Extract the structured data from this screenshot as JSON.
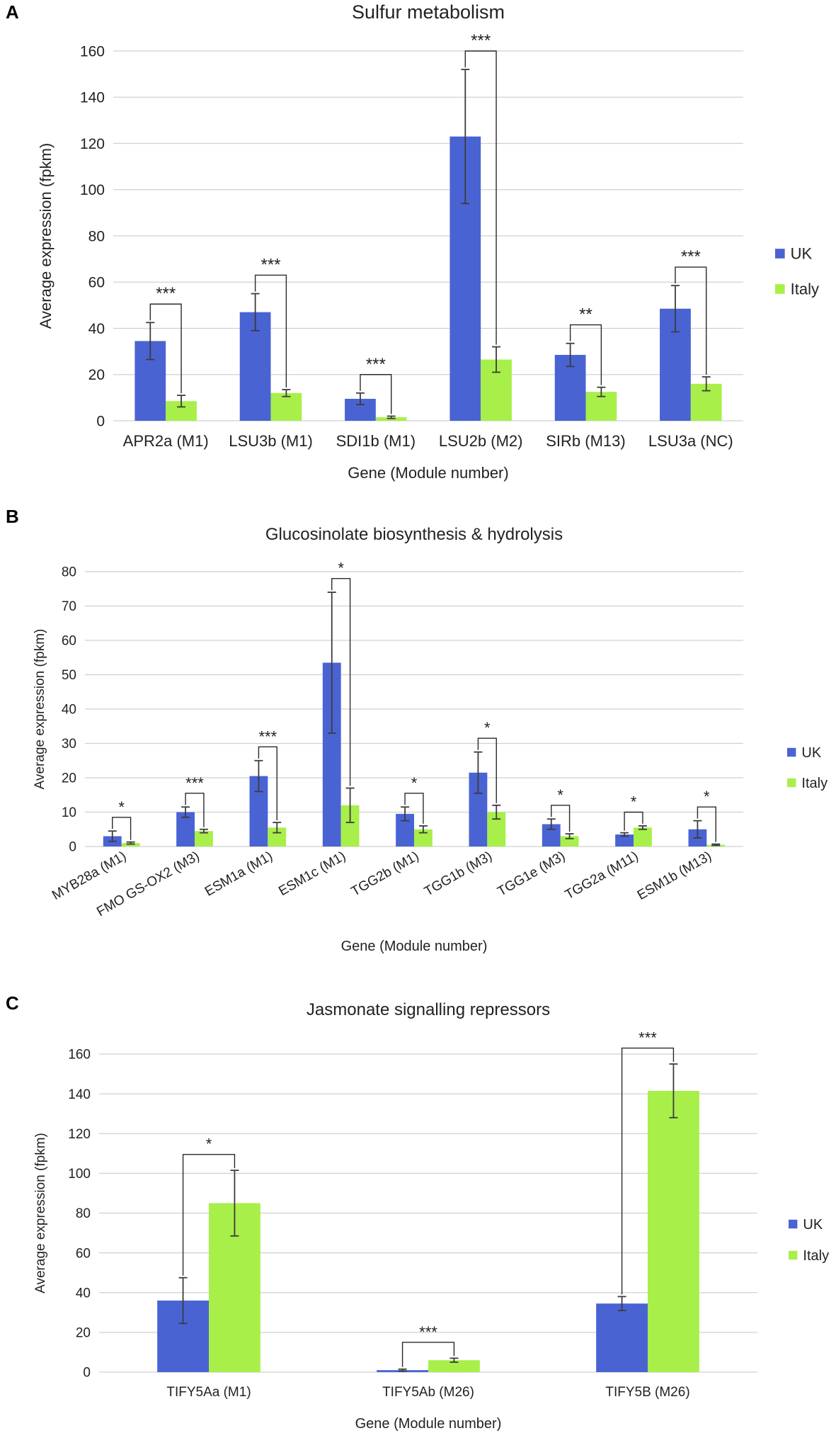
{
  "colors": {
    "uk": "#4a63d3",
    "italy": "#a8ef4a",
    "grid": "#d0d0d0",
    "error": "#3c3c3c",
    "bracket": "#2a2a2a"
  },
  "chart_data": [
    {
      "letter": "A",
      "type": "bar",
      "title": "Sulfur metabolism",
      "ylabel": "Average expression (fpkm)",
      "xlabel": "Gene (Module number)",
      "ylim": [
        0,
        160
      ],
      "yticks": [
        0,
        20,
        40,
        60,
        80,
        100,
        120,
        140,
        160
      ],
      "categories": [
        "APR2a (M1)",
        "LSU3b (M1)",
        "SDI1b (M1)",
        "LSU2b (M2)",
        "SIRb (M13)",
        "LSU3a (NC)"
      ],
      "series": [
        {
          "name": "UK",
          "values": [
            34.5,
            47,
            9.5,
            123,
            28.5,
            48.5
          ],
          "errors": [
            8,
            8,
            2.5,
            29,
            5,
            10
          ]
        },
        {
          "name": "Italy",
          "values": [
            8.5,
            12,
            1.5,
            26.5,
            12.5,
            16
          ],
          "errors": [
            2.5,
            1.5,
            0.5,
            5.5,
            2,
            3
          ]
        }
      ],
      "significance": [
        "***",
        "***",
        "***",
        "***",
        "**",
        "***"
      ],
      "legend": [
        "UK",
        "Italy"
      ],
      "rotate_ticks": false
    },
    {
      "letter": "B",
      "type": "bar",
      "title": "Glucosinolate biosynthesis & hydrolysis",
      "ylabel": "Average expression (fpkm)",
      "xlabel": "Gene (Module number)",
      "ylim": [
        0,
        80
      ],
      "yticks": [
        0,
        10,
        20,
        30,
        40,
        50,
        60,
        70,
        80
      ],
      "categories": [
        "MYB28a (M1)",
        "FMO GS-OX2 (M3)",
        "ESM1a (M1)",
        "ESM1c (M1)",
        "TGG2b (M1)",
        "TGG1b (M3)",
        "TGG1e (M3)",
        "TGG2a (M11)",
        "ESM1b (M13)"
      ],
      "series": [
        {
          "name": "UK",
          "values": [
            3,
            10,
            20.5,
            53.5,
            9.5,
            21.5,
            6.5,
            3.5,
            5
          ],
          "errors": [
            1.5,
            1.5,
            4.5,
            20.5,
            2,
            6,
            1.5,
            0.5,
            2.5
          ]
        },
        {
          "name": "Italy",
          "values": [
            1,
            4.5,
            5.5,
            12,
            5,
            10,
            3,
            5.5,
            0.5
          ],
          "errors": [
            0.3,
            0.5,
            1.5,
            5,
            1,
            2,
            0.7,
            0.5,
            0.2
          ]
        }
      ],
      "significance": [
        "*",
        "***",
        "***",
        "*",
        "*",
        "*",
        "*",
        "*",
        "*"
      ],
      "legend": [
        "UK",
        "Italy"
      ],
      "rotate_ticks": true
    },
    {
      "letter": "C",
      "type": "bar",
      "title": "Jasmonate signalling repressors",
      "ylabel": "Average expression (fpkm)",
      "xlabel": "Gene (Module number)",
      "ylim": [
        0,
        160
      ],
      "yticks": [
        0,
        20,
        40,
        60,
        80,
        100,
        120,
        140,
        160
      ],
      "categories": [
        "TIFY5Aa (M1)",
        "TIFY5Ab (M26)",
        "TIFY5B (M26)"
      ],
      "series": [
        {
          "name": "UK",
          "values": [
            36,
            1,
            34.5
          ],
          "errors": [
            11.5,
            0.5,
            3.5
          ]
        },
        {
          "name": "Italy",
          "values": [
            85,
            6,
            141.5
          ],
          "errors": [
            16.5,
            1,
            13.5
          ]
        }
      ],
      "significance": [
        "*",
        "***",
        "***"
      ],
      "legend": [
        "UK",
        "Italy"
      ],
      "rotate_ticks": false
    }
  ]
}
